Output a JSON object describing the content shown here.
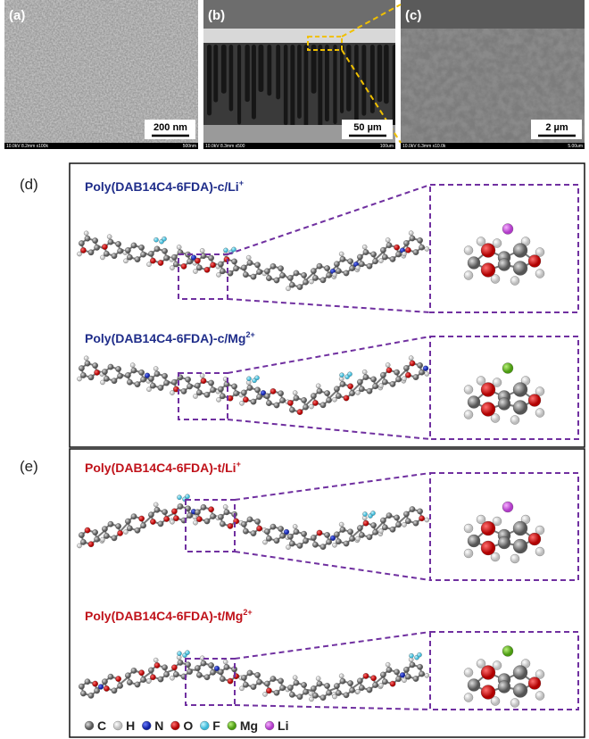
{
  "sem_images": [
    {
      "label": "(a)",
      "scale_bar": "200 nm",
      "footer_left": "10.0kV 8.2mm x100k",
      "footer_right": "500nm"
    },
    {
      "label": "(b)",
      "scale_bar": "50 µm",
      "footer_left": "10.0kV 8.3mm x500",
      "footer_right": "100um"
    },
    {
      "label": "(c)",
      "scale_bar": "2 µm",
      "footer_left": "10.0kV 6.3mm x10.0k",
      "footer_right": "5.00um"
    }
  ],
  "panels": [
    {
      "label": "(d)",
      "structures": [
        {
          "base": "Poly(DAB14C4-6FDA)-c/Li",
          "sup": "+"
        },
        {
          "base": "Poly(DAB14C4-6FDA)-c/Mg",
          "sup": "2+"
        }
      ]
    },
    {
      "label": "(e)",
      "structures": [
        {
          "base": "Poly(DAB14C4-6FDA)-t/Li",
          "sup": "+"
        },
        {
          "base": "Poly(DAB14C4-6FDA)-t/Mg",
          "sup": "2+"
        }
      ]
    }
  ],
  "legend": [
    "C",
    "H",
    "N",
    "O",
    "F",
    "Mg",
    "Li"
  ]
}
